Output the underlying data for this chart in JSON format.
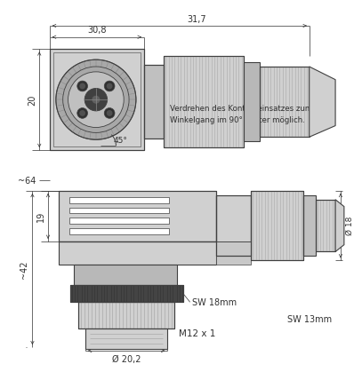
{
  "bg_color": "#ffffff",
  "line_color": "#404040",
  "dim_color": "#303030",
  "gray_light": "#d0d0d0",
  "gray_mid": "#a8a8a8",
  "gray_dark": "#707070",
  "gray_darker": "#505050",
  "white": "#ffffff",
  "annotation_text1": "Verdrehen des Kontakteinsatzes zum",
  "annotation_text2": "Winkelgang im 90° Raster möglich.",
  "dim_30_8": "30,8",
  "dim_31_7": "31,7",
  "dim_20": "20",
  "dim_45": "45°",
  "dim_64": "~64",
  "dim_19": "19",
  "dim_42": "~42",
  "dim_18": "Ø 18",
  "dim_SW18": "SW 18mm",
  "dim_SW13": "SW 13mm",
  "dim_M12": "M12 x 1",
  "dim_20_2": "Ø 20,2"
}
